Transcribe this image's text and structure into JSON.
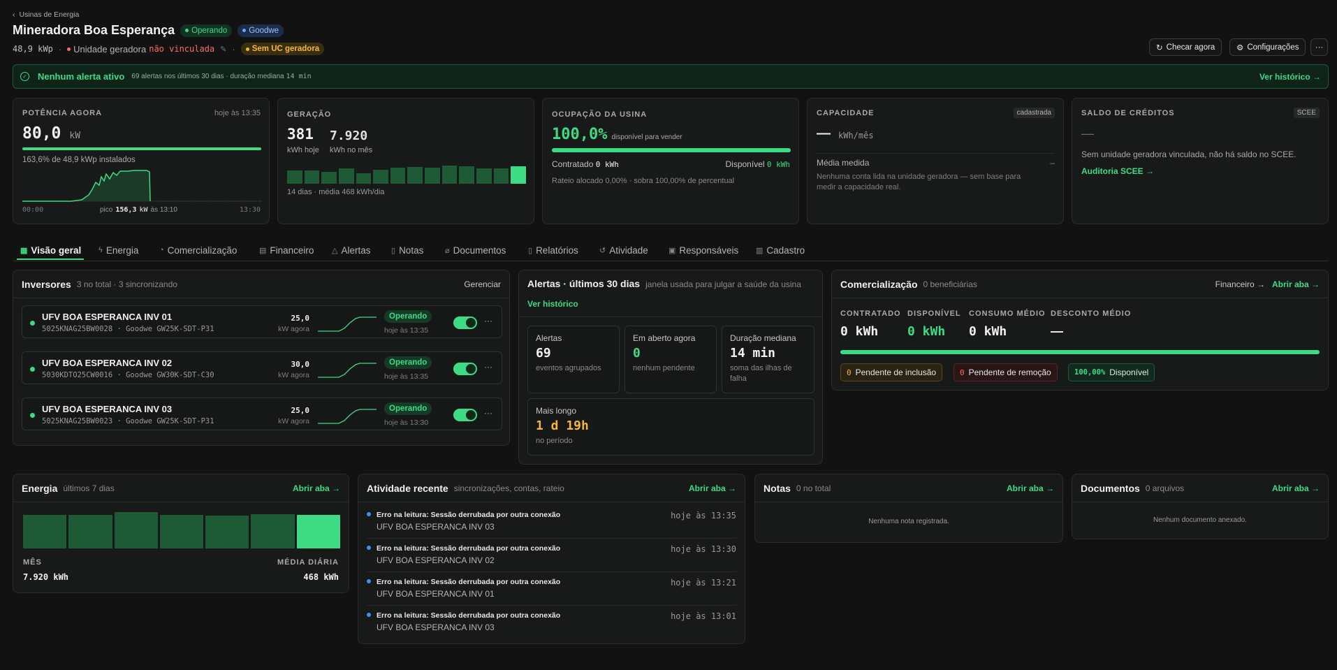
{
  "breadcrumb": "Usinas de Energia",
  "page": {
    "title": "Mineradora Boa Esperança",
    "status_badge": "Operando",
    "brand_badge": "Goodwe",
    "capacity": "48,9 kWp",
    "unit_label": "Unidade geradora",
    "unit_value": "não vinculada",
    "uc_badge": "Sem UC geradora"
  },
  "actions": {
    "check": "Checar agora",
    "settings": "Configurações",
    "more": "···"
  },
  "alert_banner": {
    "title": "Nenhum alerta ativo",
    "detail_prefix": "69 alertas nos últimos 30 dias · duração mediana",
    "detail_value": "14 min",
    "link": "Ver histórico →"
  },
  "power_card": {
    "label": "POTÊNCIA AGORA",
    "time": "hoje às 13:35",
    "value": "80,0",
    "unit": "kW",
    "progress": 1.0,
    "subtitle": "163,6% de 48,9 kWp instalados",
    "x_start": "00:00",
    "peak_label": "pico",
    "peak_value": "156,3",
    "peak_unit": "kW",
    "peak_time": "às 13:10",
    "x_end": "13:30"
  },
  "generation_card": {
    "label": "GERAÇÃO",
    "today_value": "381",
    "today_label": "kWh hoje",
    "month_value": "7.920",
    "month_label": "kWh no mês",
    "bars": [
      0.62,
      0.62,
      0.58,
      0.74,
      0.5,
      0.66,
      0.78,
      0.8,
      0.76,
      0.86,
      0.82,
      0.74,
      0.74,
      0.84
    ],
    "footer": "14 dias · média 468 kWh/dia"
  },
  "occupancy_card": {
    "label": "OCUPAÇÃO DA USINA",
    "value": "100,0%",
    "value_note": "disponível para vender",
    "progress": 1.0,
    "contracted_label": "Contratado",
    "contracted_value": "0 kWh",
    "available_label": "Disponível",
    "available_value": "0 kWh",
    "footer": "Rateio alocado 0,00% · sobra 100,00% de percentual"
  },
  "capacity_card": {
    "label": "CAPACIDADE",
    "badge": "cadastrada",
    "value": "—",
    "unit": "kWh/mês",
    "measured_label": "Média medida",
    "measured_value": "–",
    "note": "Nenhuma conta lida na unidade geradora — sem base para medir a capacidade real."
  },
  "credits_card": {
    "label": "SALDO DE CRÉDITOS",
    "badge": "SCEE",
    "value": "—",
    "note": "Sem unidade geradora vinculada, não há saldo no SCEE.",
    "link": "Auditoria SCEE →"
  },
  "tabs": [
    {
      "label": "Visão geral",
      "icon": "grid-icon"
    },
    {
      "label": "Energia",
      "icon": "bolt-icon"
    },
    {
      "label": "Comercialização",
      "icon": "pie-icon"
    },
    {
      "label": "Financeiro",
      "icon": "doc-icon"
    },
    {
      "label": "Alertas",
      "icon": "warning-icon"
    },
    {
      "label": "Notas",
      "icon": "note-icon"
    },
    {
      "label": "Documentos",
      "icon": "clip-icon"
    },
    {
      "label": "Relatórios",
      "icon": "report-icon"
    },
    {
      "label": "Atividade",
      "icon": "history-icon"
    },
    {
      "label": "Responsáveis",
      "icon": "people-icon"
    },
    {
      "label": "Cadastro",
      "icon": "archive-icon"
    }
  ],
  "inverters": {
    "title": "Inversores",
    "subtitle": "3 no total · 3 sincronizando",
    "action": "Gerenciar",
    "items": [
      {
        "name": "UFV BOA ESPERANCA INV 01",
        "serial": "5025KNAG25BW0028 · Goodwe GW25K-SDT-P31",
        "power": "25,0",
        "power_label": "kW agora",
        "status": "Operando",
        "time": "hoje às 13:35"
      },
      {
        "name": "UFV BOA ESPERANCA INV 02",
        "serial": "5030KDTO25CW0016 · Goodwe GW30K-SDT-C30",
        "power": "30,0",
        "power_label": "kW agora",
        "status": "Operando",
        "time": "hoje às 13:35"
      },
      {
        "name": "UFV BOA ESPERANCA INV 03",
        "serial": "5025KNAG25BW0023 · Goodwe GW25K-SDT-P31",
        "power": "25,0",
        "power_label": "kW agora",
        "status": "Operando",
        "time": "hoje às 13:30"
      }
    ]
  },
  "alerts_panel": {
    "title": "Alertas · últimos 30 dias",
    "subtitle": "janela usada para julgar a saúde da usina",
    "link": "Ver histórico",
    "stats": [
      {
        "label": "Alertas",
        "value": "69",
        "desc": "eventos agrupados"
      },
      {
        "label": "Em aberto agora",
        "value": "0",
        "desc": "nenhum pendente"
      },
      {
        "label": "Duração mediana",
        "value": "14 min",
        "desc": "soma das ilhas de falha"
      },
      {
        "label": "Mais longo",
        "value": "1 d 19h",
        "desc": "no período"
      }
    ]
  },
  "commercial_panel": {
    "title": "Comercialização",
    "subtitle": "0 beneficiárias",
    "link1": "Financeiro →",
    "link2": "Abrir aba →",
    "cols": [
      {
        "label": "CONTRATADO",
        "value": "0 kWh"
      },
      {
        "label": "DISPONÍVEL",
        "value": "0 kWh"
      },
      {
        "label": "CONSUMO MÉDIO",
        "value": "0 kWh"
      },
      {
        "label": "DESCONTO MÉDIO",
        "value": "—"
      }
    ],
    "progress": 1.0,
    "chips": [
      {
        "num": "0",
        "label": "Pendente de inclusão"
      },
      {
        "num": "0",
        "label": "Pendente de remoção"
      },
      {
        "num": "100,00%",
        "label": "Disponível"
      }
    ]
  },
  "energy_panel": {
    "title": "Energia",
    "subtitle": "últimos 7 dias",
    "link": "Abrir aba →",
    "bars": [
      0.92,
      0.92,
      1.0,
      0.92,
      0.9,
      0.94,
      0.92
    ],
    "month_label": "MÊS",
    "month_value": "7.920 kWh",
    "avg_label": "MÉDIA DIÁRIA",
    "avg_value": "468 kWh"
  },
  "activity_panel": {
    "title": "Atividade recente",
    "subtitle": "sincronizações, contas, rateio",
    "link": "Abrir aba →",
    "items": [
      {
        "event": "Erro na leitura: Sessão derrubada por outra conexão",
        "name": "UFV BOA ESPERANCA INV 03",
        "time": "hoje às 13:35"
      },
      {
        "event": "Erro na leitura: Sessão derrubada por outra conexão",
        "name": "UFV BOA ESPERANCA INV 02",
        "time": "hoje às 13:30"
      },
      {
        "event": "Erro na leitura: Sessão derrubada por outra conexão",
        "name": "UFV BOA ESPERANCA INV 01",
        "time": "hoje às 13:21"
      },
      {
        "event": "Erro na leitura: Sessão derrubada por outra conexão",
        "name": "UFV BOA ESPERANCA INV 03",
        "time": "hoje às 13:01"
      }
    ]
  },
  "notes_panel": {
    "title": "Notas",
    "subtitle": "0 no total",
    "link": "Abrir aba →",
    "empty": "Nenhuma nota registrada."
  },
  "docs_panel": {
    "title": "Documentos",
    "subtitle": "0 arquivos",
    "link": "Abrir aba →",
    "empty": "Nenhum documento anexado."
  },
  "colors": {
    "accent": "#3ddc84",
    "warning": "#f5b73b",
    "danger": "#ff6b6b",
    "info": "#4a90e2"
  }
}
